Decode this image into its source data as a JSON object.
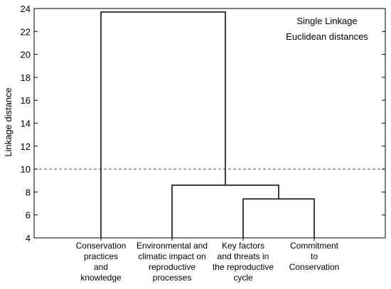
{
  "chart_data": {
    "type": "dendrogram",
    "ylabel": "Linkage distance",
    "ylim": [
      4,
      24
    ],
    "yticks": [
      "4",
      "6",
      "8",
      "10",
      "12",
      "14",
      "16",
      "18",
      "20",
      "22",
      "24"
    ],
    "annotations": [
      "Single Linkage",
      "Euclidean distances"
    ],
    "cutoff": 10,
    "leaves": [
      [
        "Conservation",
        "practices",
        "and",
        "knowledge"
      ],
      [
        "Environmental and",
        "climatic impact on",
        "reproductive",
        "processes"
      ],
      [
        "Key factors",
        "and threats in",
        "the reproductive",
        "cycle"
      ],
      [
        "Commitment",
        "to",
        "Conservation"
      ]
    ],
    "merges": [
      {
        "left": 2,
        "right": 3,
        "height": 7.4
      },
      {
        "left": 1,
        "right": "m0",
        "height": 8.6
      },
      {
        "left": 0,
        "right": "m1",
        "height": 23.7
      }
    ]
  }
}
